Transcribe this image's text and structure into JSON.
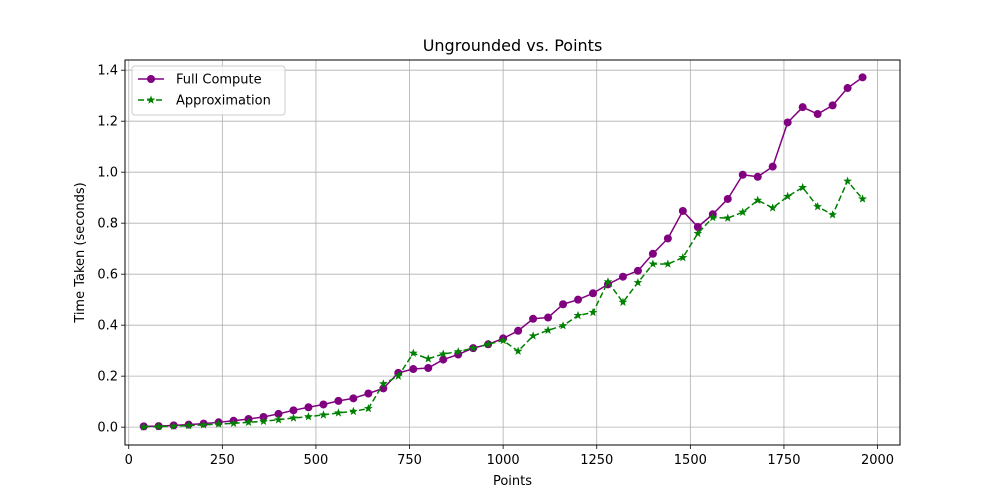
{
  "chart_data": {
    "type": "line",
    "title": "Ungrounded vs. Points",
    "xlabel": "Points",
    "ylabel": "Time Taken (seconds)",
    "xlim": [
      -10,
      2060
    ],
    "ylim": [
      -0.07,
      1.44
    ],
    "xticks": [
      0,
      250,
      500,
      750,
      1000,
      1250,
      1500,
      1750,
      2000
    ],
    "yticks": [
      0.0,
      0.2,
      0.4,
      0.6,
      0.8,
      1.0,
      1.2,
      1.4
    ],
    "xtick_labels": [
      "0",
      "250",
      "500",
      "750",
      "1000",
      "1250",
      "1500",
      "1750",
      "2000"
    ],
    "ytick_labels": [
      "0.0",
      "0.2",
      "0.4",
      "0.6",
      "0.8",
      "1.0",
      "1.2",
      "1.4"
    ],
    "grid": true,
    "legend_position": "top-left",
    "x": [
      40,
      80,
      120,
      160,
      200,
      240,
      280,
      320,
      360,
      400,
      440,
      480,
      520,
      560,
      600,
      640,
      680,
      720,
      760,
      800,
      840,
      880,
      920,
      960,
      1000,
      1040,
      1080,
      1120,
      1160,
      1200,
      1240,
      1280,
      1320,
      1360,
      1400,
      1440,
      1480,
      1520,
      1560,
      1600,
      1640,
      1680,
      1720,
      1760,
      1800,
      1840,
      1880,
      1920,
      1960
    ],
    "series": [
      {
        "name": "Full Compute",
        "color": "#800080",
        "style": "solid",
        "marker": "circle",
        "values": [
          0.003,
          0.004,
          0.007,
          0.01,
          0.014,
          0.019,
          0.025,
          0.032,
          0.04,
          0.052,
          0.066,
          0.078,
          0.089,
          0.103,
          0.113,
          0.132,
          0.152,
          0.213,
          0.228,
          0.232,
          0.265,
          0.285,
          0.31,
          0.325,
          0.348,
          0.378,
          0.425,
          0.43,
          0.482,
          0.5,
          0.525,
          0.56,
          0.59,
          0.613,
          0.68,
          0.74,
          0.848,
          0.785,
          0.835,
          0.895,
          0.99,
          0.982,
          1.022,
          1.195,
          1.255,
          1.228,
          1.262,
          1.33,
          1.372
        ]
      },
      {
        "name": "Approximation",
        "color": "#008000",
        "style": "dashed",
        "marker": "star",
        "values": [
          0.001,
          0.002,
          0.004,
          0.006,
          0.009,
          0.012,
          0.015,
          0.019,
          0.023,
          0.029,
          0.036,
          0.041,
          0.048,
          0.056,
          0.062,
          0.073,
          0.17,
          0.2,
          0.29,
          0.268,
          0.287,
          0.296,
          0.31,
          0.325,
          0.34,
          0.298,
          0.358,
          0.38,
          0.398,
          0.438,
          0.45,
          0.57,
          0.49,
          0.567,
          0.64,
          0.64,
          0.665,
          0.76,
          0.822,
          0.82,
          0.843,
          0.89,
          0.86,
          0.905,
          0.94,
          0.865,
          0.833,
          0.965,
          0.895
        ]
      }
    ]
  }
}
